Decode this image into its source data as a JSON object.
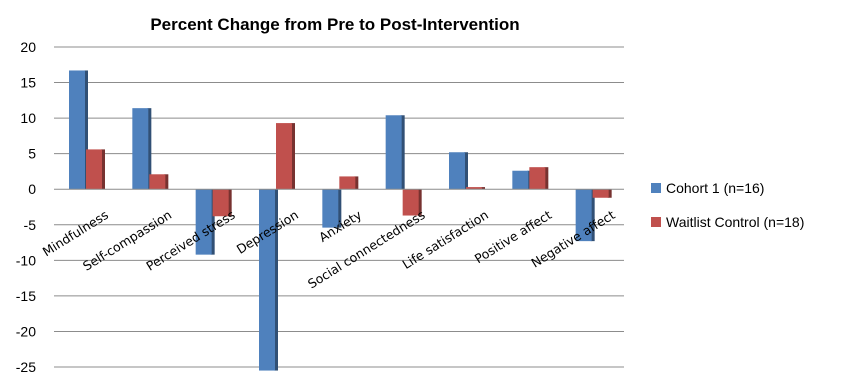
{
  "chart_data": {
    "type": "bar",
    "title": "Percent Change from Pre to Post-Intervention",
    "xlabel": "",
    "ylabel": "",
    "ylim": [
      -25,
      20
    ],
    "yticks": [
      20,
      15,
      10,
      5,
      0,
      -5,
      -10,
      -15,
      -20,
      -25
    ],
    "grid": true,
    "legend_position": "right",
    "categories": [
      "Mindfulness",
      "Self-compassion",
      "Perceived stress",
      "Depression",
      "Anxiety",
      "Social connectedness",
      "Life satisfaction",
      "Positive affect",
      "Negative affect"
    ],
    "series": [
      {
        "name": "Cohort 1 (n=16)",
        "color": "#4F81BD",
        "values": [
          16.7,
          11.4,
          -9.2,
          -25.5,
          -5.4,
          10.4,
          5.2,
          2.6,
          -7.3
        ]
      },
      {
        "name": "Waitlist Control (n=18)",
        "color": "#C0504D",
        "values": [
          5.6,
          2.1,
          -3.8,
          9.3,
          1.8,
          -3.7,
          0.3,
          3.1,
          -1.2
        ]
      }
    ]
  }
}
